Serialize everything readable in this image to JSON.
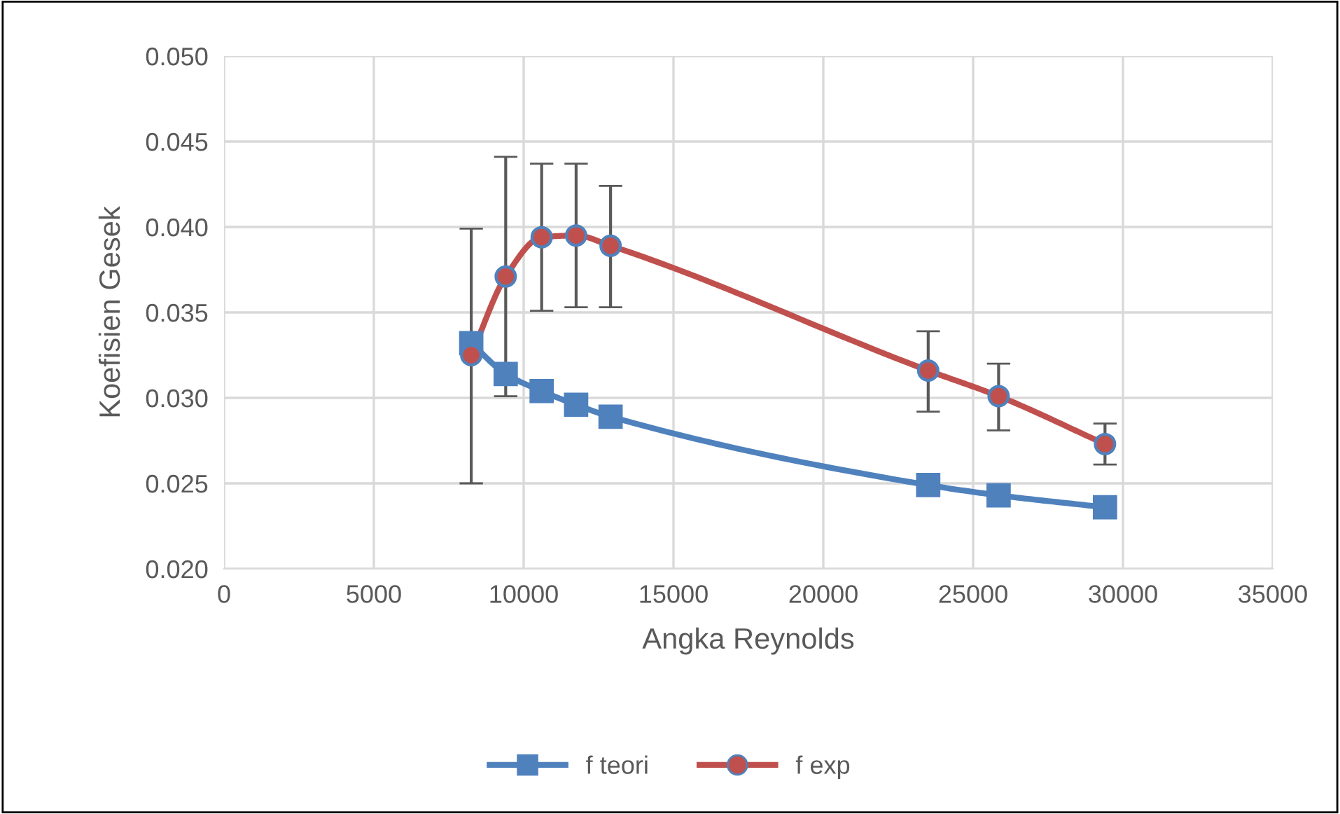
{
  "chart_data": {
    "type": "line",
    "xlabel": "Angka Reynolds",
    "ylabel": "Koefisien Gesek",
    "x": [
      8250,
      9400,
      10600,
      11750,
      12900,
      23500,
      25850,
      29400
    ],
    "xlim": [
      0,
      35000
    ],
    "xticks": [
      0,
      5000,
      10000,
      15000,
      20000,
      25000,
      30000,
      35000
    ],
    "ylim": [
      0.02,
      0.05
    ],
    "yticks": [
      {
        "value": 0.02,
        "label": "0.020"
      },
      {
        "value": 0.025,
        "label": "0.025"
      },
      {
        "value": 0.03,
        "label": "0.030"
      },
      {
        "value": 0.035,
        "label": "0.035"
      },
      {
        "value": 0.04,
        "label": "0.040"
      },
      {
        "value": 0.045,
        "label": "0.045"
      },
      {
        "value": 0.05,
        "label": "0.050"
      }
    ],
    "grid": true,
    "legend": "bottom",
    "series": [
      {
        "name": "f teori",
        "color": "#4f81bd",
        "marker": "square",
        "values": [
          0.0332,
          0.0314,
          0.0304,
          0.0296,
          0.0289,
          0.0249,
          0.0243,
          0.0236
        ]
      },
      {
        "name": "f exp",
        "color": "#c0504d",
        "marker": "circle",
        "values": [
          0.0325,
          0.0371,
          0.0394,
          0.0395,
          0.0389,
          0.0316,
          0.0301,
          0.0273
        ],
        "errors": [
          [
            0.025,
            0.0399
          ],
          [
            0.0301,
            0.0441
          ],
          [
            0.0351,
            0.0437
          ],
          [
            0.0353,
            0.0437
          ],
          [
            0.0353,
            0.0424
          ],
          [
            0.0292,
            0.0339
          ],
          [
            0.0281,
            0.032
          ],
          [
            0.0261,
            0.0285
          ]
        ]
      }
    ]
  }
}
